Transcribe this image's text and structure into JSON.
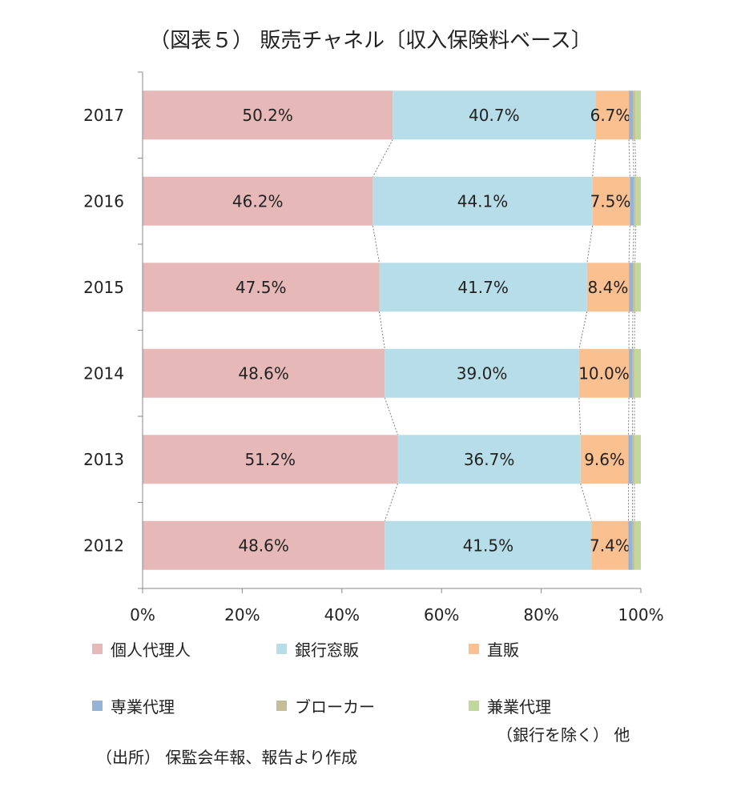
{
  "title": "（図表５） 販売チャネル〔収入保険料ベース〕",
  "source": "（出所） 保監会年報、報告より作成",
  "legend_note": "（銀行を除く） 他",
  "chart_data": {
    "type": "bar",
    "orientation": "horizontal",
    "stacked": "percent",
    "categories": [
      "2017",
      "2016",
      "2015",
      "2014",
      "2013",
      "2012"
    ],
    "series": [
      {
        "name": "個人代理人",
        "color": "#e6b8b7",
        "values": [
          50.2,
          46.2,
          47.5,
          48.6,
          51.2,
          48.6
        ],
        "labels": [
          "50.2%",
          "46.2%",
          "47.5%",
          "48.6%",
          "51.2%",
          "48.6%"
        ]
      },
      {
        "name": "銀行窓販",
        "color": "#b7dee8",
        "values": [
          40.7,
          44.1,
          41.7,
          39.0,
          36.7,
          41.5
        ],
        "labels": [
          "40.7%",
          "44.1%",
          "41.7%",
          "39.0%",
          "36.7%",
          "41.5%"
        ]
      },
      {
        "name": "直販",
        "color": "#fac090",
        "values": [
          6.7,
          7.5,
          8.4,
          10.0,
          9.6,
          7.4
        ],
        "labels": [
          "6.7%",
          "7.5%",
          "8.4%",
          "10.0%",
          "9.6%",
          "7.4%"
        ]
      },
      {
        "name": "専業代理",
        "color": "#95b3d7",
        "values": [
          0.8,
          0.8,
          0.8,
          0.7,
          0.8,
          0.8
        ]
      },
      {
        "name": "ブローカー",
        "color": "#c4bd97",
        "values": [
          0.4,
          0.4,
          0.4,
          0.4,
          0.4,
          0.4
        ]
      },
      {
        "name": "兼業代理",
        "color": "#c3d69b",
        "values": [
          1.2,
          1.0,
          1.2,
          1.3,
          1.3,
          1.3
        ]
      }
    ],
    "xlim": [
      0,
      100
    ],
    "xticks": [
      "0%",
      "20%",
      "40%",
      "60%",
      "80%",
      "100%"
    ],
    "series_lines": true,
    "legend_position": "bottom"
  }
}
